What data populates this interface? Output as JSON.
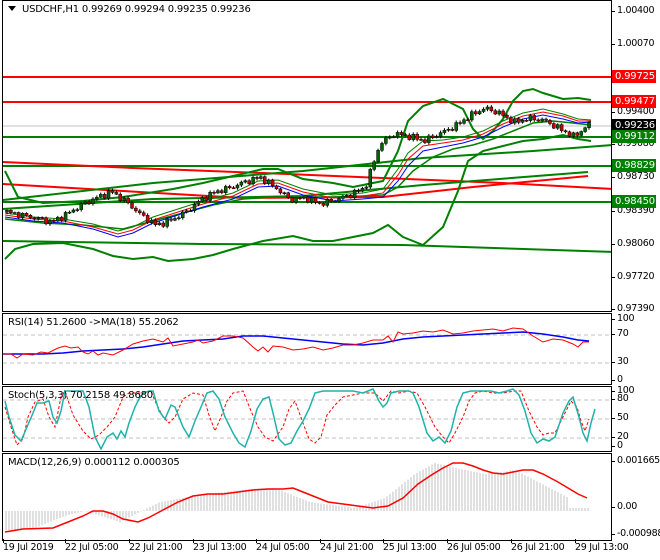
{
  "chart_data": [
    {
      "type": "candlestick",
      "title": "USDCHF,H1",
      "ohlc_header": {
        "open": "0.99269",
        "high": "0.99294",
        "low": "0.99235",
        "close": "0.99236"
      },
      "y_ticks": [
        "1.00400",
        "1.00070",
        "0.99400",
        "0.99080",
        "0.98730",
        "0.98390",
        "0.98060",
        "0.97720",
        "0.97390"
      ],
      "ylim": [
        0.9739,
        1.0045
      ],
      "price_tags": [
        {
          "label": "0.99725",
          "color": "#ff0000"
        },
        {
          "label": "0.99477",
          "color": "#ff0000"
        },
        {
          "label": "0.99236",
          "color": "#000000"
        },
        {
          "label": "0.99112",
          "color": "#008000"
        },
        {
          "label": "0.98829",
          "color": "#008000"
        },
        {
          "label": "0.98450",
          "color": "#008000"
        }
      ],
      "horizontal_levels": [
        {
          "value": 0.99725,
          "color": "#ff0000"
        },
        {
          "value": 0.99477,
          "color": "#ff0000"
        },
        {
          "value": 0.99236,
          "color": "#c0c0c0"
        },
        {
          "value": 0.99112,
          "color": "#008000"
        },
        {
          "value": 0.98829,
          "color": "#008000"
        },
        {
          "value": 0.9845,
          "color": "#008000"
        }
      ],
      "overlays": [
        "Bollinger Bands (green)",
        "Moving averages (red, blue, green)",
        "Trend channel lines (red, green)"
      ],
      "approx_close_path": [
        0.9838,
        0.9835,
        0.9832,
        0.9828,
        0.9836,
        0.9845,
        0.9852,
        0.9858,
        0.9848,
        0.9835,
        0.9825,
        0.983,
        0.9838,
        0.985,
        0.9858,
        0.9862,
        0.9868,
        0.9872,
        0.9862,
        0.985,
        0.9852,
        0.9846,
        0.985,
        0.9855,
        0.9862,
        0.9905,
        0.9915,
        0.9912,
        0.9908,
        0.9915,
        0.9922,
        0.9932,
        0.994,
        0.9935,
        0.9926,
        0.993,
        0.9928,
        0.992,
        0.9912,
        0.9924
      ]
    },
    {
      "type": "line",
      "title": "RSI(14) 51.2600  ->MA(18) 55.2062",
      "y_ticks": [
        "100",
        "70",
        "30",
        "0"
      ],
      "levels": [
        70,
        30
      ],
      "series": [
        {
          "name": "RSI(14)",
          "color": "#ff0000",
          "last": 51.26
        },
        {
          "name": "MA(18)",
          "color": "#0000ff",
          "last": 55.2062
        }
      ]
    },
    {
      "type": "line",
      "title": "Stoch(5,3,3) 70.2158 49.8680",
      "y_ticks": [
        "100",
        "80",
        "50",
        "20",
        "0"
      ],
      "levels": [
        80,
        50,
        20
      ],
      "series": [
        {
          "name": "%K",
          "color": "#20b2aa",
          "last": 70.2158
        },
        {
          "name": "%D",
          "color": "#ff0000",
          "style": "dashed",
          "last": 49.868
        }
      ]
    },
    {
      "type": "bar+line",
      "title": "MACD(12,26,9) 0.000112 0.000305",
      "y_ticks": [
        "0.001665",
        "0.00",
        "-0.000988"
      ],
      "ylim": [
        -0.000988,
        0.001665
      ],
      "series": [
        {
          "name": "MACD histogram",
          "color": "#c0c0c0",
          "last": 0.000112
        },
        {
          "name": "Signal",
          "color": "#ff0000",
          "last": 0.000305
        }
      ]
    }
  ],
  "header": {
    "symbol_line": "USDCHF,H1  0.99269 0.99294 0.99235 0.99236"
  },
  "main_axis": {
    "ticks": [
      "1.00400",
      "1.00070",
      "0.99400",
      "0.99080",
      "0.98730",
      "0.98390",
      "0.98060",
      "0.97720",
      "0.97390"
    ],
    "tags": [
      "0.99725",
      "0.99477",
      "0.99236",
      "0.99112",
      "0.98829",
      "0.98450"
    ]
  },
  "rsi": {
    "title": "RSI(14) 51.2600  ->MA(18) 55.2062",
    "ticks": [
      "100",
      "70",
      "30",
      "0"
    ]
  },
  "stoch": {
    "title": "Stoch(5,3,3) 70.2158 49.8680",
    "ticks": [
      "100",
      "80",
      "50",
      "20",
      "0"
    ]
  },
  "macd": {
    "title": "MACD(12,26,9) 0.000112 0.000305",
    "ticks": [
      "0.001665",
      "0.00",
      "-0.000988"
    ]
  },
  "time_axis": {
    "labels": [
      "19 Jul 2019",
      "22 Jul 05:00",
      "22 Jul 21:00",
      "23 Jul 13:00",
      "24 Jul 05:00",
      "24 Jul 21:00",
      "25 Jul 13:00",
      "26 Jul 05:00",
      "26 Jul 21:00",
      "29 Jul 13:00"
    ]
  },
  "colors": {
    "resistance": "#ff0000",
    "support": "#008000",
    "current_price": "#000000",
    "bull_candle": "#006400",
    "bear_candle": "#cc0000"
  }
}
